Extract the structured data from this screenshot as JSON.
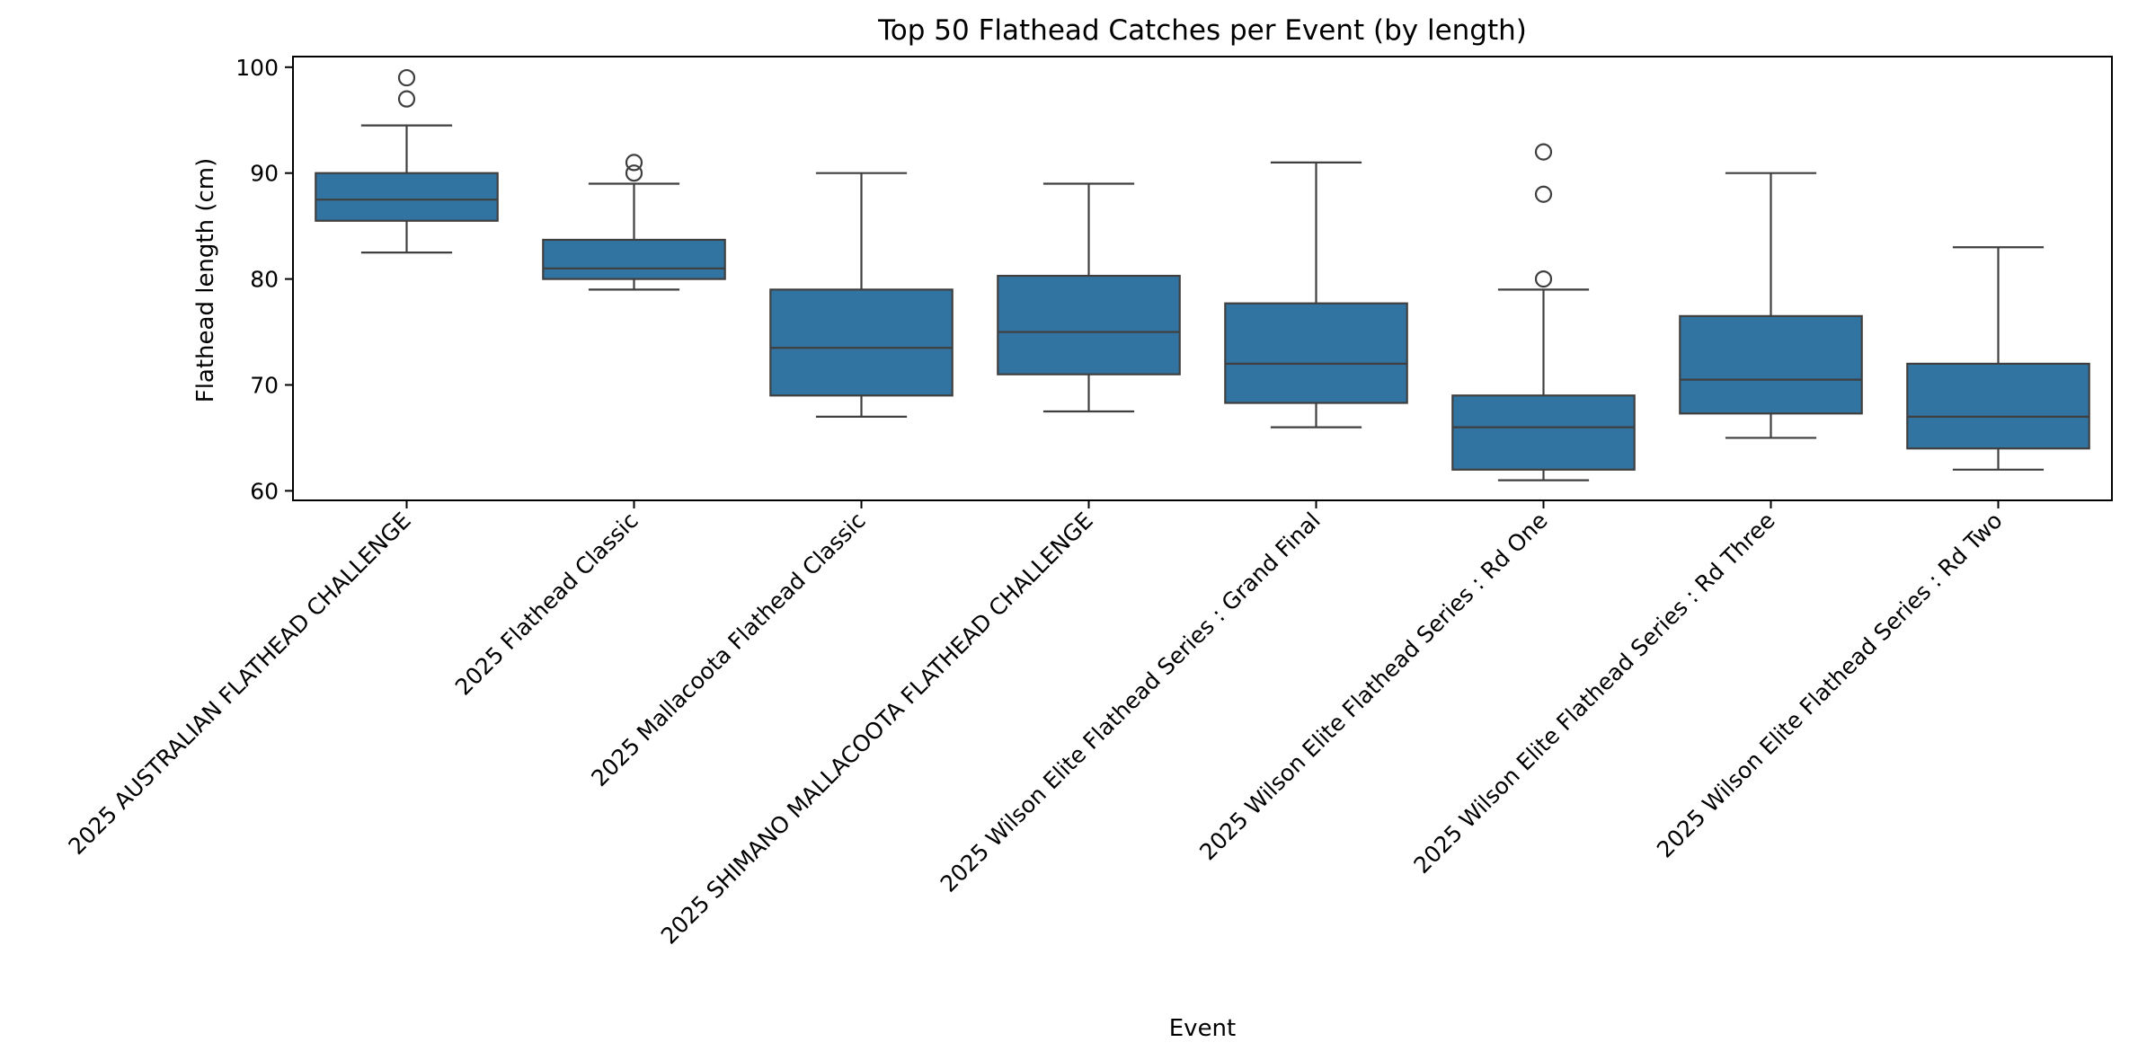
{
  "chart_data": {
    "type": "box",
    "title": "Top 50 Flathead Catches per Event (by length)",
    "xlabel": "Event",
    "ylabel": "Flathead length (cm)",
    "ylim": [
      59.1,
      101.0
    ],
    "yticks": [
      60,
      70,
      80,
      90,
      100
    ],
    "grid": false,
    "color": "#3274a1",
    "line_color": "#3f3f3f",
    "categories": [
      "2025 AUSTRALIAN FLATHEAD CHALLENGE",
      "2025 Flathead Classic",
      "2025 Mallacoota Flathead Classic",
      "2025 SHIMANO MALLACOOTA FLATHEAD CHALLENGE",
      "2025 Wilson Elite Flathead Series : Grand Final",
      "2025 Wilson Elite Flathead Series : Rd One",
      "2025 Wilson Elite Flathead Series : Rd Three",
      "2025 Wilson Elite Flathead Series : Rd Two"
    ],
    "boxes": [
      {
        "whislo": 82.5,
        "q1": 85.5,
        "med": 87.5,
        "q3": 90.0,
        "whishi": 94.5,
        "fliers": [
          97,
          99
        ]
      },
      {
        "whislo": 79.0,
        "q1": 80.0,
        "med": 81.0,
        "q3": 83.7,
        "whishi": 89.0,
        "fliers": [
          90,
          91
        ]
      },
      {
        "whislo": 67.0,
        "q1": 69.0,
        "med": 73.5,
        "q3": 79.0,
        "whishi": 90.0,
        "fliers": []
      },
      {
        "whislo": 67.5,
        "q1": 71.0,
        "med": 75.0,
        "q3": 80.3,
        "whishi": 89.0,
        "fliers": []
      },
      {
        "whislo": 66.0,
        "q1": 68.3,
        "med": 72.0,
        "q3": 77.7,
        "whishi": 91.0,
        "fliers": []
      },
      {
        "whislo": 61.0,
        "q1": 62.0,
        "med": 66.0,
        "q3": 69.0,
        "whishi": 79.0,
        "fliers": [
          80,
          88,
          92
        ]
      },
      {
        "whislo": 65.0,
        "q1": 67.3,
        "med": 70.5,
        "q3": 76.5,
        "whishi": 90.0,
        "fliers": []
      },
      {
        "whislo": 62.0,
        "q1": 64.0,
        "med": 67.0,
        "q3": 72.0,
        "whishi": 83.0,
        "fliers": []
      }
    ]
  }
}
